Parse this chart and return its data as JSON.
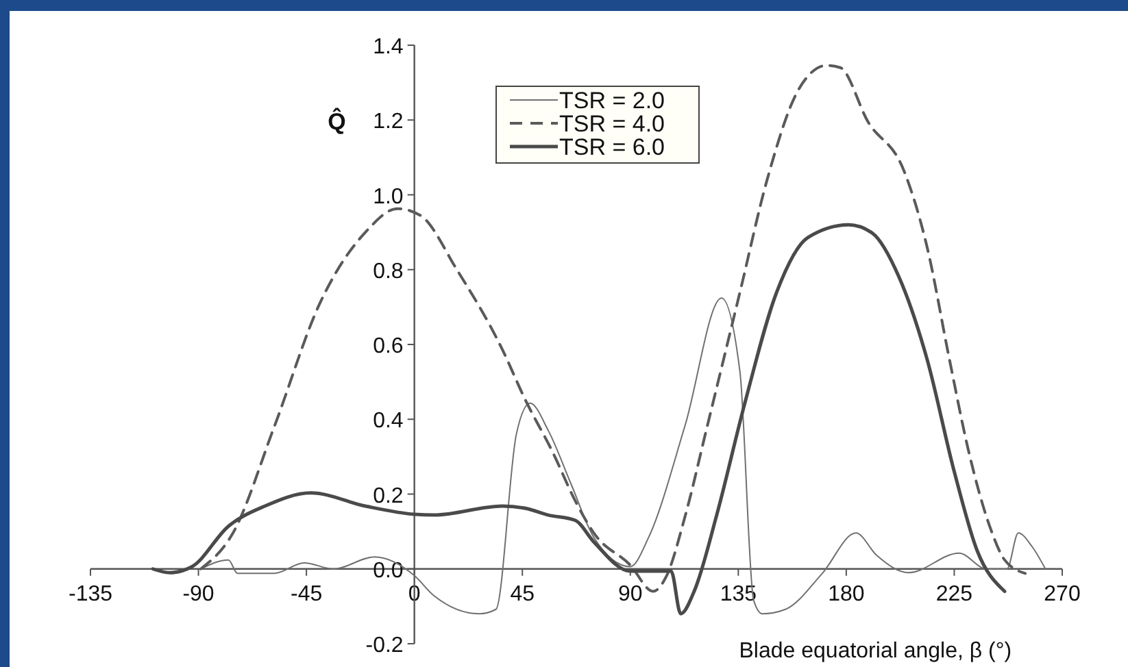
{
  "chart_data": {
    "type": "line",
    "xlabel": "Blade equatorial angle, β (°)",
    "ylabel": "Q̂",
    "xlim": [
      -135,
      270
    ],
    "xticks": [
      -135,
      -90,
      -45,
      0,
      45,
      90,
      135,
      180,
      225,
      270
    ],
    "ylim": [
      -0.2,
      1.4
    ],
    "yticks": [
      {
        "value": -0.2,
        "label": "-0.2"
      },
      {
        "value": 0,
        "label": "0.0"
      },
      {
        "value": 0.2,
        "label": "0.2"
      },
      {
        "value": 0.4,
        "label": "0.4"
      },
      {
        "value": 0.6,
        "label": "0.6"
      },
      {
        "value": 0.8,
        "label": "0.8"
      },
      {
        "value": 1,
        "label": "1.0"
      },
      {
        "value": 1.2,
        "label": "1.2"
      },
      {
        "value": 1.4,
        "label": "1.4"
      }
    ],
    "grid": false,
    "legend": "top",
    "marker": "none",
    "series": [
      {
        "name": "TSR = 2.0",
        "color": "#707070",
        "line_style": "solid",
        "x": [
          -89,
          -77.5,
          -73.7,
          -58.4,
          -46,
          -33.7,
          -16.6,
          0,
          8.2,
          27,
          34,
          42.5,
          48.2,
          55.8,
          65.3,
          74.8,
          90,
          97.6,
          112.8,
          128,
          135.7,
          141.4,
          145,
          154.7,
          170,
          184,
          192.7,
          206,
          227,
          238.4,
          247,
          251.7,
          257.4,
          263
        ],
        "values": [
          0,
          0.024,
          -0.012,
          -0.012,
          0.016,
          0,
          0.032,
          -0.018,
          -0.072,
          -0.12,
          -0.108,
          0.36,
          0.443,
          0.37,
          0.227,
          0.084,
          0.006,
          0.084,
          0.383,
          0.724,
          0.526,
          -0.084,
          -0.12,
          -0.108,
          -0.012,
          0.096,
          0.036,
          -0.01,
          0.042,
          0,
          0,
          0.096,
          0.06,
          0
        ]
      },
      {
        "name": "TSR = 4.0",
        "color": "#5a5a5a",
        "line_style": "dashed",
        "x": [
          -89,
          -75.6,
          -58.4,
          -39.4,
          -20.4,
          -7,
          2.5,
          17.7,
          36.7,
          46,
          57.8,
          67.2,
          74.8,
          90,
          99.5,
          105,
          112.8,
          122,
          135.7,
          147,
          160,
          171.8,
          177.5,
          189,
          204,
          213.7,
          223,
          230.8,
          240,
          246,
          254.6
        ],
        "values": [
          0,
          0.096,
          0.38,
          0.71,
          0.9,
          0.963,
          0.945,
          0.8,
          0.586,
          0.455,
          0.31,
          0.18,
          0.096,
          0.01,
          -0.06,
          -0.02,
          0.14,
          0.38,
          0.74,
          1.04,
          1.28,
          1.346,
          1.34,
          1.196,
          1.065,
          0.86,
          0.56,
          0.32,
          0.11,
          0.024,
          -0.012
        ]
      },
      {
        "name": "TSR = 6.0",
        "color": "#4a4a4a",
        "line_style": "solid",
        "x": [
          -109,
          -102,
          -92.7,
          -77.5,
          -62.3,
          -43.2,
          -20.4,
          0,
          8.2,
          36.7,
          46.3,
          55.8,
          67,
          74.8,
          90,
          107,
          111,
          116.6,
          126,
          137.6,
          151,
          164,
          181,
          190.8,
          202,
          213.7,
          225,
          234.6,
          246
        ],
        "values": [
          0,
          -0.01,
          0.006,
          0.114,
          0.168,
          0.203,
          0.168,
          0.146,
          0.144,
          0.168,
          0.162,
          0.144,
          0.13,
          0.072,
          -0.006,
          -0.006,
          -0.12,
          -0.06,
          0.144,
          0.44,
          0.74,
          0.886,
          0.92,
          0.898,
          0.78,
          0.56,
          0.26,
          0.048,
          -0.06
        ]
      }
    ]
  }
}
